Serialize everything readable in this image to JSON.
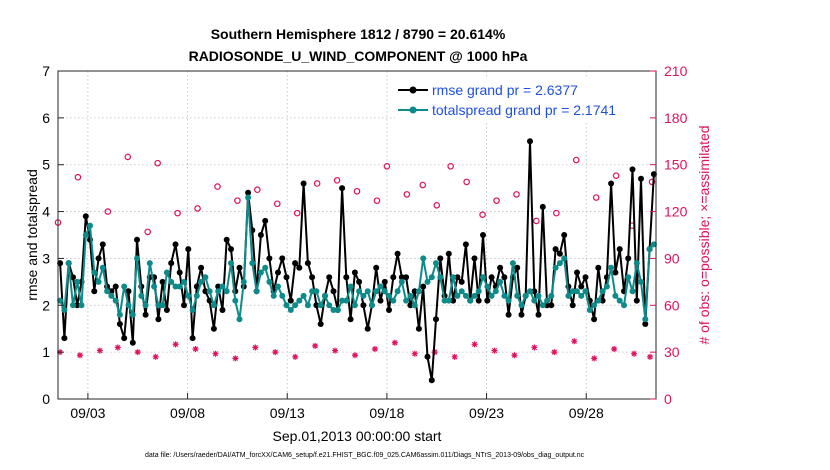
{
  "chart_data": {
    "type": "line",
    "title": "Southern Hemisphere 1812 / 8790 = 20.614%",
    "subtitle": "RADIOSONDE_U_WIND_COMPONENT @ 1000 hPa",
    "xlabel": "Sep.01,2013 00:00:00 start",
    "ylabel": "rmse and totalspread",
    "y2label": "# of obs: o=possible; ×=assimilated",
    "xlim": [
      1.5,
      31.5
    ],
    "ylim": [
      0,
      7
    ],
    "y2lim": [
      0,
      210
    ],
    "x_ticks": [
      3,
      8,
      13,
      18,
      23,
      28
    ],
    "x_tick_labels": [
      "09/03",
      "09/08",
      "09/13",
      "09/18",
      "09/23",
      "09/28"
    ],
    "y_ticks": [
      0,
      1,
      2,
      3,
      4,
      5,
      6,
      7
    ],
    "y_tick_labels": [
      "0",
      "1",
      "2",
      "3",
      "4",
      "5",
      "6",
      "7"
    ],
    "y2_ticks": [
      0,
      30,
      60,
      90,
      120,
      150,
      180,
      210
    ],
    "y2_tick_labels": [
      "0",
      "30",
      "60",
      "90",
      "120",
      "150",
      "180",
      "210"
    ],
    "legend_position": "top-right",
    "series": [
      {
        "name": "rmse grand pr = 2.6377",
        "color": "#000000",
        "marker": "filled-circle",
        "axis": "left",
        "values": [
          2.9,
          1.3,
          2.9,
          2.6,
          2.0,
          2.5,
          3.9,
          3.4,
          2.3,
          3.0,
          3.3,
          2.4,
          2.3,
          2.4,
          1.6,
          1.3,
          2.3,
          1.2,
          3.4,
          2.4,
          1.8,
          2.6,
          2.6,
          1.7,
          2.5,
          1.9,
          2.9,
          3.3,
          2.7,
          2.0,
          3.2,
          1.3,
          2.4,
          2.8,
          2.3,
          2.1,
          1.5,
          2.4,
          1.9,
          3.4,
          3.2,
          2.3,
          2.8,
          2.4,
          4.4,
          3.6,
          2.3,
          3.5,
          3.8,
          3.0,
          2.3,
          2.7,
          3.0,
          2.6,
          2.1,
          2.9,
          2.8,
          4.6,
          2.9,
          2.6,
          2.0,
          1.6,
          2.2,
          2.6,
          2.3,
          1.9,
          4.5,
          2.6,
          1.7,
          2.7,
          2.5,
          2.0,
          1.5,
          2.0,
          2.8,
          2.1,
          2.5,
          1.9,
          2.6,
          3.1,
          2.6,
          2.6,
          2.0,
          2.3,
          1.5,
          2.4,
          0.9,
          0.4,
          1.7,
          3.0,
          2.2,
          3.1,
          2.1,
          2.6,
          2.5,
          3.3,
          2.1,
          3.0,
          2.1,
          3.5,
          2.1,
          2.6,
          2.4,
          2.8,
          2.6,
          1.8,
          2.6,
          2.8,
          1.8,
          2.2,
          5.5,
          2.3,
          1.8,
          4.1,
          2.0,
          2.0,
          3.2,
          3.1,
          3.5,
          2.4,
          2.0,
          2.7,
          2.4,
          2.6,
          2.1,
          1.7,
          2.8,
          2.1,
          2.6,
          4.6,
          2.7,
          3.2,
          2.3,
          3.0,
          4.9,
          2.1,
          4.7,
          1.6,
          3.2,
          4.8
        ]
      },
      {
        "name": "totalspread grand pr = 2.1741",
        "color": "#0d8b8b",
        "marker": "filled-circle",
        "axis": "left",
        "values": [
          2.1,
          1.9,
          2.9,
          2.0,
          2.5,
          2.0,
          3.5,
          3.7,
          2.7,
          2.5,
          2.8,
          2.3,
          2.2,
          2.1,
          1.8,
          2.4,
          2.0,
          1.8,
          3.0,
          2.2,
          2.0,
          2.9,
          2.4,
          2.0,
          2.0,
          2.7,
          2.5,
          2.4,
          2.4,
          2.5,
          2.2,
          1.9,
          2.2,
          2.5,
          2.6,
          2.3,
          2.0,
          2.3,
          2.4,
          2.3,
          2.9,
          2.1,
          1.7,
          2.5,
          4.3,
          2.9,
          2.3,
          2.7,
          2.8,
          2.5,
          2.2,
          2.4,
          2.2,
          2.0,
          1.9,
          2.0,
          2.1,
          2.2,
          2.0,
          2.3,
          2.3,
          2.0,
          2.2,
          2.0,
          1.9,
          1.9,
          2.1,
          2.1,
          2.4,
          2.0,
          2.3,
          2.2,
          2.3,
          2.0,
          2.3,
          2.4,
          2.3,
          2.2,
          2.1,
          2.3,
          2.5,
          2.1,
          2.2,
          2.0,
          2.3,
          3.0,
          2.5,
          2.6,
          2.9,
          2.6,
          2.1,
          2.1,
          2.6,
          2.2,
          2.3,
          2.2,
          2.1,
          2.2,
          2.3,
          2.6,
          2.4,
          2.2,
          2.3,
          2.5,
          2.2,
          2.1,
          2.9,
          2.2,
          2.0,
          2.2,
          2.3,
          2.1,
          2.2,
          2.0,
          2.1,
          2.2,
          2.8,
          2.9,
          3.0,
          2.2,
          2.3,
          2.3,
          2.2,
          2.3,
          1.9,
          2.0,
          2.1,
          2.3,
          2.4,
          2.8,
          2.2,
          2.1,
          2.0,
          2.6,
          2.3,
          2.9,
          2.5,
          1.7,
          3.2,
          3.3
        ]
      },
      {
        "name": "possible obs",
        "color": "#e0115f",
        "marker": "open-circle",
        "axis": "right",
        "x": [
          1.5,
          2.5,
          4.0,
          5.0,
          6.0,
          6.5,
          7.5,
          8.5,
          9.5,
          10.5,
          11.5,
          12.5,
          13.5,
          14.5,
          15.5,
          16.5,
          17.5,
          18.0,
          19.0,
          19.8,
          20.5,
          21.2,
          22.0,
          22.8,
          23.5,
          24.5,
          25.5,
          26.5,
          27.5,
          28.5,
          29.5,
          30.3,
          31.3
        ],
        "values": [
          113,
          142,
          120,
          155,
          107,
          151,
          119,
          122,
          136,
          127,
          134,
          125,
          119,
          138,
          140,
          133,
          127,
          149,
          131,
          137,
          124,
          149,
          139,
          118,
          127,
          131,
          114,
          119,
          153,
          129,
          143,
          111,
          139
        ]
      },
      {
        "name": "assimilated obs",
        "color": "#e0115f",
        "marker": "asterisk",
        "axis": "right",
        "x": [
          1.6,
          2.6,
          3.6,
          4.5,
          5.5,
          6.4,
          7.4,
          8.4,
          9.4,
          10.4,
          11.4,
          12.4,
          13.4,
          14.4,
          15.4,
          16.4,
          17.4,
          18.4,
          19.4,
          20.4,
          21.4,
          22.4,
          23.4,
          24.4,
          25.4,
          26.4,
          27.4,
          28.4,
          29.4,
          30.4,
          31.2
        ],
        "values": [
          30,
          28,
          31,
          33,
          30,
          27,
          35,
          32,
          29,
          26,
          33,
          30,
          27,
          34,
          31,
          28,
          32,
          36,
          29,
          30,
          27,
          35,
          31,
          28,
          33,
          30,
          37,
          26,
          32,
          29,
          27
        ]
      }
    ],
    "annotations": [
      "data file: /Users/raeder/DAI/ATM_forcXX/CAM6_setup/f.e21.FHIST_BGC.f09_025.CAM6assim.011/Diags_NTrS_2013-09/obs_diag_output.nc"
    ]
  }
}
